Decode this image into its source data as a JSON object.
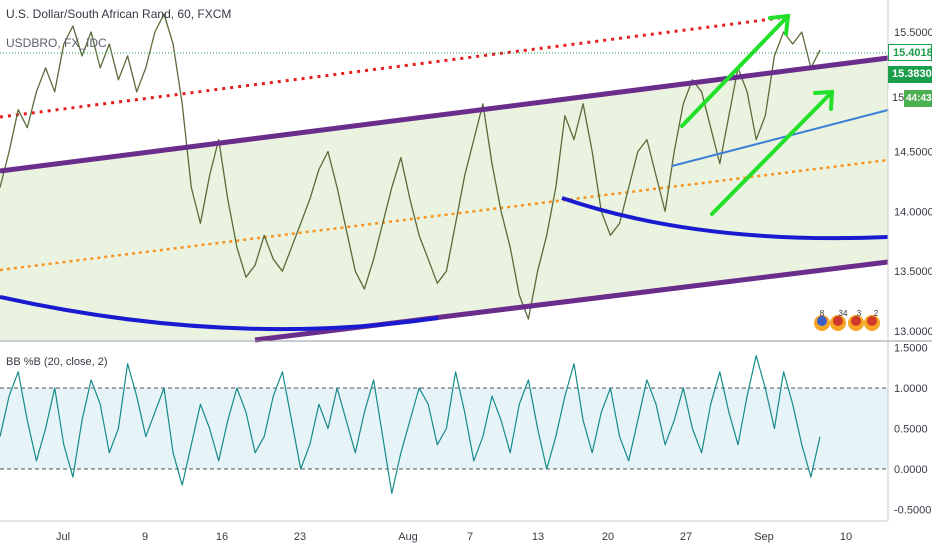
{
  "header": {
    "title": "U.S. Dollar/South African Rand, 60, FXCM",
    "subtitle": "USDBRO, FX_IDC"
  },
  "indicator": {
    "label": "BB %B (20, close, 2)"
  },
  "badges": {
    "price_1": "15.40181",
    "price_2": "15.38300",
    "price_3": "15.",
    "countdown": "44:43"
  },
  "events": {
    "label_1": "8",
    "label_2": "34",
    "label_3": "3",
    "label_4": "2"
  },
  "colors": {
    "background": "#ffffff",
    "channel_fill": "#e8f2dc",
    "purple": "#6b2d8c",
    "blue": "#1a1ad1",
    "light_blue": "#3d7fd6",
    "red_dotted": "#e61e1e",
    "orange_dotted": "#f7931e",
    "green_arrow": "#22e02a",
    "price_line": "#5a6b3a",
    "oscillator": "#168a8a",
    "band_fill": "#e6f4f8",
    "badge_green_dark": "#1b9e4b",
    "badge_green_light": "#4caf50"
  },
  "chart_data": [
    {
      "type": "line",
      "title": "U.S. Dollar/South African Rand, 60, FXCM",
      "x_tick_labels": [
        "Jul",
        "9",
        "16",
        "23",
        "Aug",
        "7",
        "13",
        "20",
        "27",
        "Sep",
        "10"
      ],
      "y_tick_labels": [
        "15.5000",
        "15.",
        "14.5000",
        "14.0000",
        "13.5000",
        "13.0000"
      ],
      "y_ticks": [
        15.5,
        15.0,
        14.5,
        14.0,
        13.5,
        13.0
      ],
      "ylim": [
        12.9,
        15.75
      ],
      "series": [
        {
          "values": [
            14.2,
            14.5,
            14.85,
            14.7,
            15.0,
            15.2,
            15.0,
            15.4,
            15.55,
            15.3,
            15.5,
            15.2,
            15.4,
            15.1,
            15.3,
            15.0,
            15.2,
            15.5,
            15.65,
            15.4,
            14.9,
            14.2,
            13.9,
            14.3,
            14.6,
            14.1,
            13.7,
            13.45,
            13.55,
            13.8,
            13.6,
            13.5,
            13.7,
            13.9,
            14.1,
            14.35,
            14.5,
            14.2,
            13.85,
            13.5,
            13.35,
            13.6,
            13.9,
            14.2,
            14.45,
            14.1,
            13.8,
            13.6,
            13.4,
            13.5,
            13.9,
            14.3,
            14.6,
            14.9,
            14.4,
            14.0,
            13.7,
            13.3,
            13.1,
            13.5,
            13.8,
            14.2,
            14.8,
            14.6,
            14.9,
            14.5,
            14.0,
            13.8,
            13.9,
            14.2,
            14.5,
            14.6,
            14.3,
            14.0,
            14.5,
            14.9,
            15.1,
            15.0,
            14.7,
            14.4,
            14.8,
            15.2,
            15.0,
            14.6,
            14.8,
            15.3,
            15.5,
            15.4,
            15.5,
            15.2,
            15.35
          ]
        }
      ]
    },
    {
      "type": "line",
      "title": "BB %B (20, close, 2)",
      "y_tick_labels": [
        "1.5000",
        "1.0000",
        "0.5000",
        "0.0000",
        "-0.5000"
      ],
      "y_ticks": [
        1.5,
        1.0,
        0.5,
        0.0,
        -0.5
      ],
      "ylim": [
        -0.55,
        1.55
      ],
      "series": [
        {
          "values": [
            0.4,
            0.9,
            1.2,
            0.6,
            0.1,
            0.5,
            1.0,
            0.3,
            -0.1,
            0.6,
            1.1,
            0.8,
            0.2,
            0.5,
            1.3,
            0.9,
            0.4,
            0.7,
            1.0,
            0.2,
            -0.2,
            0.3,
            0.8,
            0.5,
            0.1,
            0.6,
            1.0,
            0.7,
            0.2,
            0.4,
            0.9,
            1.2,
            0.6,
            0.0,
            0.3,
            0.8,
            0.5,
            1.0,
            0.6,
            0.2,
            0.7,
            1.1,
            0.4,
            -0.3,
            0.2,
            0.6,
            1.0,
            0.8,
            0.3,
            0.5,
            1.2,
            0.7,
            0.1,
            0.4,
            0.9,
            0.6,
            0.2,
            0.8,
            1.1,
            0.5,
            0.0,
            0.4,
            0.9,
            1.3,
            0.6,
            0.2,
            0.7,
            1.0,
            0.4,
            0.1,
            0.6,
            1.1,
            0.8,
            0.3,
            0.6,
            1.0,
            0.5,
            0.2,
            0.8,
            1.2,
            0.7,
            0.3,
            0.9,
            1.4,
            1.0,
            0.5,
            1.2,
            0.8,
            0.3,
            -0.1,
            0.4
          ]
        }
      ]
    }
  ]
}
